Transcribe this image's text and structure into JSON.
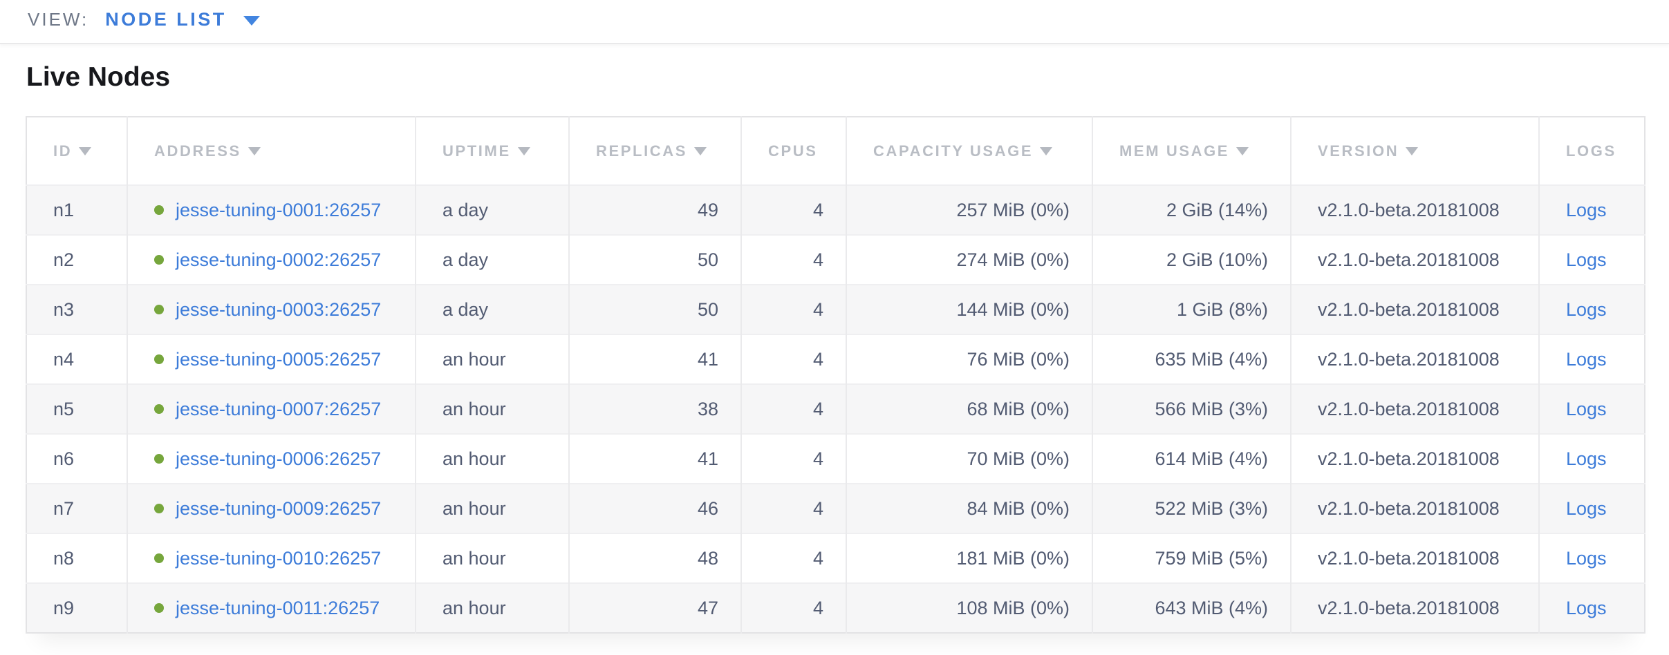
{
  "view_bar": {
    "label": "VIEW:",
    "selected": "NODE LIST"
  },
  "page": {
    "title": "Live Nodes"
  },
  "colors": {
    "accent_blue": "#3d7cd9",
    "healthy_green": "#76a63c",
    "header_text": "#b9bdc4",
    "body_text": "#525b72",
    "row_stripe": "#f6f6f7"
  },
  "icons": {
    "caret_down": "triangle-down",
    "sort_desc": "triangle-down",
    "node_status": "green-dot"
  },
  "table": {
    "columns": [
      {
        "key": "id",
        "label": "ID",
        "sortable": true,
        "align": "left"
      },
      {
        "key": "address",
        "label": "ADDRESS",
        "sortable": true,
        "align": "left"
      },
      {
        "key": "uptime",
        "label": "UPTIME",
        "sortable": true,
        "align": "left"
      },
      {
        "key": "replicas",
        "label": "REPLICAS",
        "sortable": true,
        "align": "right"
      },
      {
        "key": "cpus",
        "label": "CPUS",
        "sortable": false,
        "align": "right"
      },
      {
        "key": "capacity",
        "label": "CAPACITY USAGE",
        "sortable": true,
        "align": "right"
      },
      {
        "key": "mem",
        "label": "MEM USAGE",
        "sortable": true,
        "align": "right"
      },
      {
        "key": "version",
        "label": "VERSION",
        "sortable": true,
        "align": "left"
      },
      {
        "key": "logs",
        "label": "LOGS",
        "sortable": false,
        "align": "left"
      }
    ],
    "rows": [
      {
        "id": "n1",
        "status": "healthy",
        "address": "jesse-tuning-0001:26257",
        "uptime": "a day",
        "replicas": "49",
        "cpus": "4",
        "capacity": "257 MiB (0%)",
        "mem": "2 GiB (14%)",
        "version": "v2.1.0-beta.20181008",
        "logs": "Logs"
      },
      {
        "id": "n2",
        "status": "healthy",
        "address": "jesse-tuning-0002:26257",
        "uptime": "a day",
        "replicas": "50",
        "cpus": "4",
        "capacity": "274 MiB (0%)",
        "mem": "2 GiB (10%)",
        "version": "v2.1.0-beta.20181008",
        "logs": "Logs"
      },
      {
        "id": "n3",
        "status": "healthy",
        "address": "jesse-tuning-0003:26257",
        "uptime": "a day",
        "replicas": "50",
        "cpus": "4",
        "capacity": "144 MiB (0%)",
        "mem": "1 GiB (8%)",
        "version": "v2.1.0-beta.20181008",
        "logs": "Logs"
      },
      {
        "id": "n4",
        "status": "healthy",
        "address": "jesse-tuning-0005:26257",
        "uptime": "an hour",
        "replicas": "41",
        "cpus": "4",
        "capacity": "76 MiB (0%)",
        "mem": "635 MiB (4%)",
        "version": "v2.1.0-beta.20181008",
        "logs": "Logs"
      },
      {
        "id": "n5",
        "status": "healthy",
        "address": "jesse-tuning-0007:26257",
        "uptime": "an hour",
        "replicas": "38",
        "cpus": "4",
        "capacity": "68 MiB (0%)",
        "mem": "566 MiB (3%)",
        "version": "v2.1.0-beta.20181008",
        "logs": "Logs"
      },
      {
        "id": "n6",
        "status": "healthy",
        "address": "jesse-tuning-0006:26257",
        "uptime": "an hour",
        "replicas": "41",
        "cpus": "4",
        "capacity": "70 MiB (0%)",
        "mem": "614 MiB (4%)",
        "version": "v2.1.0-beta.20181008",
        "logs": "Logs"
      },
      {
        "id": "n7",
        "status": "healthy",
        "address": "jesse-tuning-0009:26257",
        "uptime": "an hour",
        "replicas": "46",
        "cpus": "4",
        "capacity": "84 MiB (0%)",
        "mem": "522 MiB (3%)",
        "version": "v2.1.0-beta.20181008",
        "logs": "Logs"
      },
      {
        "id": "n8",
        "status": "healthy",
        "address": "jesse-tuning-0010:26257",
        "uptime": "an hour",
        "replicas": "48",
        "cpus": "4",
        "capacity": "181 MiB (0%)",
        "mem": "759 MiB (5%)",
        "version": "v2.1.0-beta.20181008",
        "logs": "Logs"
      },
      {
        "id": "n9",
        "status": "healthy",
        "address": "jesse-tuning-0011:26257",
        "uptime": "an hour",
        "replicas": "47",
        "cpus": "4",
        "capacity": "108 MiB (0%)",
        "mem": "643 MiB (4%)",
        "version": "v2.1.0-beta.20181008",
        "logs": "Logs"
      }
    ]
  }
}
